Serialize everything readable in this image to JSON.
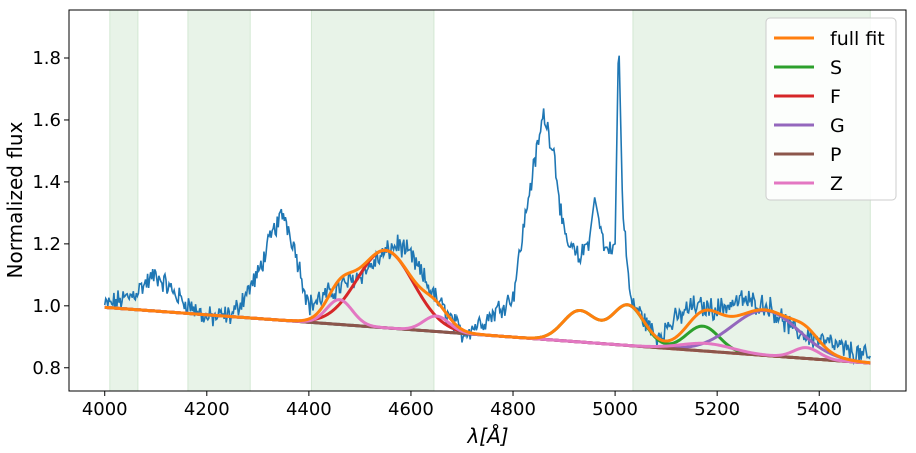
{
  "chart_data": {
    "type": "line",
    "xlabel": "λ[Å]",
    "ylabel": "Normalized flux",
    "xlim": [
      3930,
      5570
    ],
    "ylim": [
      0.725,
      1.955
    ],
    "xticks": [
      4000,
      4200,
      4400,
      4600,
      4800,
      5000,
      5200,
      5400
    ],
    "yticks": [
      0.8,
      1.0,
      1.2,
      1.4,
      1.6,
      1.8
    ],
    "shaded_windows": [
      [
        4010,
        4065
      ],
      [
        4163,
        4285
      ],
      [
        4405,
        4645
      ],
      [
        5035,
        5500
      ]
    ],
    "shade_color": "#e8f3e8",
    "grid": false,
    "legend_position": "top-right",
    "continuum": {
      "x": [
        4000,
        5500
      ],
      "y": [
        0.995,
        0.815
      ]
    },
    "spectrum": {
      "color": "#1f77b4",
      "x": [
        4000,
        4050,
        4100,
        4150,
        4200,
        4250,
        4300,
        4330,
        4350,
        4370,
        4400,
        4450,
        4500,
        4550,
        4575,
        4600,
        4650,
        4700,
        4750,
        4800,
        4830,
        4860,
        4880,
        4900,
        4930,
        4950,
        4960,
        4980,
        5000,
        5007,
        5015,
        5030,
        5080,
        5150,
        5200,
        5250,
        5300,
        5350,
        5400,
        5450,
        5500
      ],
      "y": [
        1.0,
        1.03,
        1.1,
        1.02,
        0.96,
        0.97,
        1.1,
        1.24,
        1.3,
        1.2,
        1.0,
        1.05,
        1.1,
        1.17,
        1.2,
        1.16,
        1.02,
        0.91,
        0.96,
        1.03,
        1.35,
        1.62,
        1.5,
        1.22,
        1.15,
        1.22,
        1.35,
        1.18,
        1.2,
        1.88,
        1.3,
        1.02,
        0.9,
        1.0,
        0.99,
        1.02,
        1.0,
        0.92,
        0.89,
        0.86,
        0.83
      ]
    },
    "series": [
      {
        "name": "full fit",
        "color": "#ff7f0e",
        "gaussians": [
          [
            0.25,
            4550,
            55
          ],
          [
            0.08,
            4460,
            25
          ],
          [
            0.05,
            4650,
            25
          ],
          [
            0.1,
            4930,
            32
          ],
          [
            0.13,
            5025,
            32
          ],
          [
            0.08,
            5172,
            32
          ],
          [
            0.145,
            5295,
            65
          ],
          [
            0.035,
            5375,
            25
          ],
          [
            0.025,
            5180,
            50
          ]
        ]
      },
      {
        "name": "S",
        "color": "#2ca02c",
        "gaussians": [
          [
            0.1,
            4930,
            32
          ],
          [
            0.13,
            5025,
            32
          ],
          [
            0.08,
            5172,
            32
          ]
        ]
      },
      {
        "name": "F",
        "color": "#d62728",
        "gaussians": [
          [
            0.25,
            4550,
            55
          ]
        ]
      },
      {
        "name": "G",
        "color": "#9467bd",
        "gaussians": [
          [
            0.145,
            5295,
            65
          ]
        ]
      },
      {
        "name": "P",
        "color": "#8c564b",
        "gaussians": []
      },
      {
        "name": "Z",
        "color": "#e377c2",
        "gaussians": [
          [
            0.08,
            4460,
            25
          ],
          [
            0.05,
            4650,
            25
          ],
          [
            0.035,
            5375,
            25
          ],
          [
            0.025,
            5180,
            50
          ]
        ]
      }
    ]
  }
}
